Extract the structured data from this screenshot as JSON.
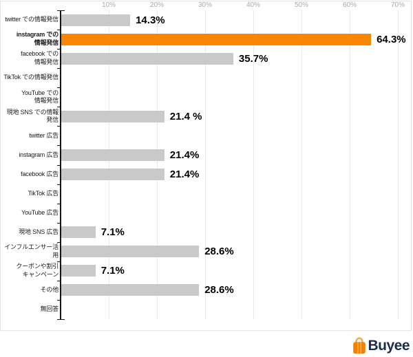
{
  "chart_data": {
    "type": "bar",
    "orientation": "horizontal",
    "title": "",
    "xlabel": "",
    "ylabel": "",
    "xlim": [
      0,
      70
    ],
    "grid": true,
    "x_ticks": [
      "10%",
      "20%",
      "30%",
      "40%",
      "50%",
      "60%",
      "70%"
    ],
    "categories": [
      "twitter での情報発信",
      "instagram での\n情報発信",
      "facebook での\n情報発信",
      "TikTok での情報発信",
      "YouTube での\n情報発信",
      "現地 SNS での情報発信",
      "twitter 広告",
      "instagram 広告",
      "facebook 広告",
      "TikTok 広告",
      "YouTube 広告",
      "現地 SNS 広告",
      "インフルエンサー活用",
      "クーポンや割引\nキャンペーン",
      "その他",
      "無回答"
    ],
    "values": [
      14.3,
      64.3,
      35.7,
      0,
      0,
      21.4,
      0,
      21.4,
      21.4,
      0,
      0,
      7.1,
      28.6,
      7.1,
      28.6,
      0
    ],
    "value_labels": [
      "14.3%",
      "64.3%",
      "35.7%",
      "",
      "",
      "21.4 %",
      "",
      "21.4%",
      "21.4%",
      "",
      "",
      "7.1%",
      "28.6%",
      "7.1%",
      "28.6%",
      ""
    ],
    "highlight_index": 1,
    "bar_color": "#c9c9c9",
    "highlight_color": "#f98600"
  },
  "logo": {
    "text": "Buyee",
    "icon": "shopping-bag-icon",
    "icon_color": "#f08300",
    "icon_handle_color": "#f5a83c",
    "text_color": "#1d2c4d"
  }
}
